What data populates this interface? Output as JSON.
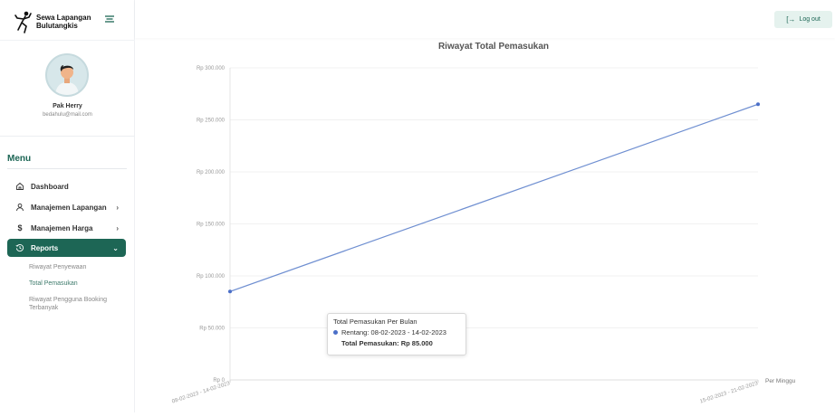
{
  "app": {
    "brand_line1": "Sewa Lapangan",
    "brand_line2": "Bulutangkis",
    "logo_icon": "badminton-player-icon",
    "menu_toggle_icon": "hamburger-icon"
  },
  "user": {
    "name": "Pak Herry",
    "email": "bedahulu@mail.com",
    "avatar_icon": "user-avatar-icon"
  },
  "menu": {
    "title": "Menu",
    "items": [
      {
        "label": "Dashboard",
        "icon": "home-icon",
        "chevron": ""
      },
      {
        "label": "Manajemen Lapangan",
        "icon": "user-icon",
        "chevron": "›"
      },
      {
        "label": "Manajemen Harga",
        "icon": "dollar-icon",
        "chevron": "›"
      },
      {
        "label": "Reports",
        "icon": "history-icon",
        "chevron": "⌄"
      }
    ],
    "sub_items": [
      {
        "label": "Riwayat Penyewaan"
      },
      {
        "label": "Total Pemasukan"
      },
      {
        "label": "Riwayat Pengguna Booking Terbanyak"
      }
    ]
  },
  "header": {
    "logout_label": "Log out",
    "logout_icon": "logout-icon"
  },
  "chart_data": {
    "type": "line",
    "title": "Riwayat Total Pemasukan",
    "xlabel": "Per Minggu",
    "ylabel": "",
    "categories": [
      "08-02-2023 - 14-02-2023",
      "15-02-2023 - 21-02-2023"
    ],
    "series": [
      {
        "name": "Total Pemasukan Per Bulan",
        "values": [
          85000,
          265000
        ]
      }
    ],
    "ylim": [
      0,
      300000
    ],
    "yticks": [
      "Rp 0",
      "Rp 50.000",
      "Rp 100.000",
      "Rp 150.000",
      "Rp 200.000",
      "Rp 250.000",
      "Rp 300.000"
    ],
    "xtick_labels": [
      "08-02-2023 - 14-02-2023",
      "15-02-2023 - 21-02-2023"
    ],
    "grid": true,
    "line_color": "#6f8fd1",
    "point_color": "#4b6fc8"
  },
  "tooltip": {
    "title": "Total Pemasukan Per Bulan",
    "range": "Rentang: 08-02-2023 - 14-02-2023",
    "total": "Total Pemasukan: Rp 85.000"
  }
}
